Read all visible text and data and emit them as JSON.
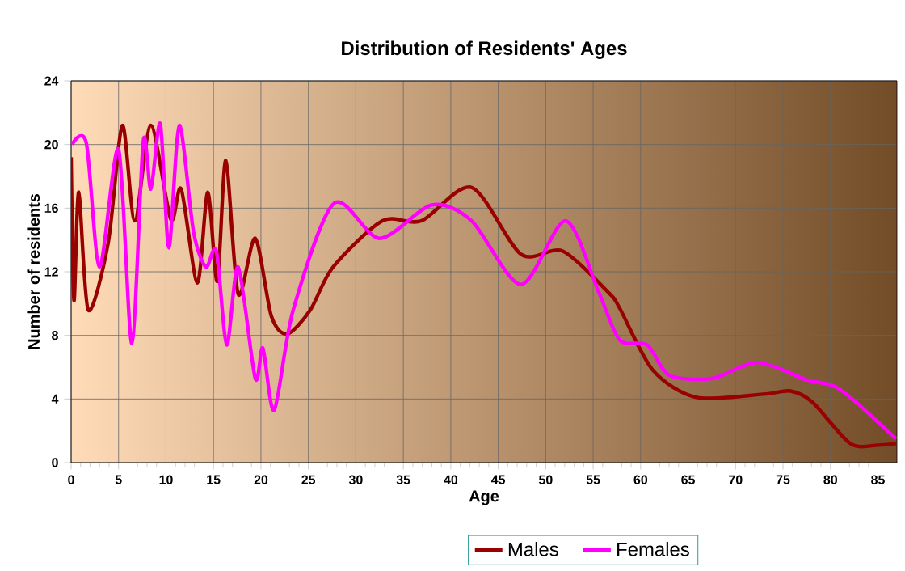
{
  "chart_data": {
    "type": "line",
    "title": "Distribution of Residents' Ages",
    "xlabel": "Age",
    "ylabel": "Number of residents",
    "xlim": [
      0,
      87
    ],
    "xticks": [
      0,
      5,
      10,
      15,
      20,
      25,
      30,
      35,
      40,
      45,
      50,
      55,
      60,
      65,
      70,
      75,
      80,
      85
    ],
    "ylim": [
      0,
      24
    ],
    "yticks": [
      0,
      4,
      8,
      12,
      16,
      20,
      24
    ],
    "grid": true,
    "legend": "bottom",
    "marker": "none",
    "line_style": "solid",
    "series": [
      {
        "name": "Males",
        "color": "#990000",
        "x": [
          0,
          0.3,
          0.8,
          1.8,
          3.9,
          5.4,
          6.7,
          8.4,
          10.5,
          11.6,
          13.3,
          14.4,
          15.4,
          16.3,
          17.6,
          19.4,
          21.1,
          22.8,
          25.2,
          27.6,
          32.8,
          36.9,
          42.2,
          47.4,
          51.8,
          56.6,
          57.8,
          61.3,
          65.9,
          72.9,
          75.8,
          78.1,
          82.1,
          85,
          86.9
        ],
        "values": [
          19.2,
          10.2,
          17,
          9.6,
          13.8,
          21.2,
          15.2,
          21.2,
          15.3,
          17.2,
          11.3,
          17,
          11.4,
          19,
          10.6,
          14.1,
          9.2,
          8.1,
          9.6,
          12.3,
          15.2,
          15.2,
          17.3,
          13.1,
          13.3,
          10.7,
          9.7,
          5.8,
          4.1,
          4.3,
          4.5,
          3.8,
          1.2,
          1.1,
          1.2
        ]
      },
      {
        "name": "Females",
        "color": "#ff00ff",
        "x": [
          0.1,
          1.6,
          3,
          5,
          6.4,
          7.6,
          8.4,
          9.4,
          10.3,
          11.4,
          12.9,
          14.2,
          15.3,
          16.4,
          17.6,
          19.4,
          20.2,
          21.4,
          23.4,
          27.7,
          32.5,
          38,
          42.2,
          47.4,
          52.1,
          55.6,
          57.8,
          60.7,
          63,
          67.6,
          72.3,
          77.5,
          81,
          86.9
        ],
        "values": [
          20,
          20.1,
          12.3,
          19.7,
          7.5,
          20.2,
          17.2,
          21.3,
          13.5,
          21.2,
          14.5,
          12.3,
          13.3,
          7.4,
          12.3,
          5.3,
          7.2,
          3.3,
          9.6,
          16.3,
          14.1,
          16.2,
          15.2,
          11.2,
          15.2,
          10.7,
          7.7,
          7.4,
          5.5,
          5.3,
          6.3,
          5.2,
          4.6,
          1.5
        ]
      }
    ]
  }
}
